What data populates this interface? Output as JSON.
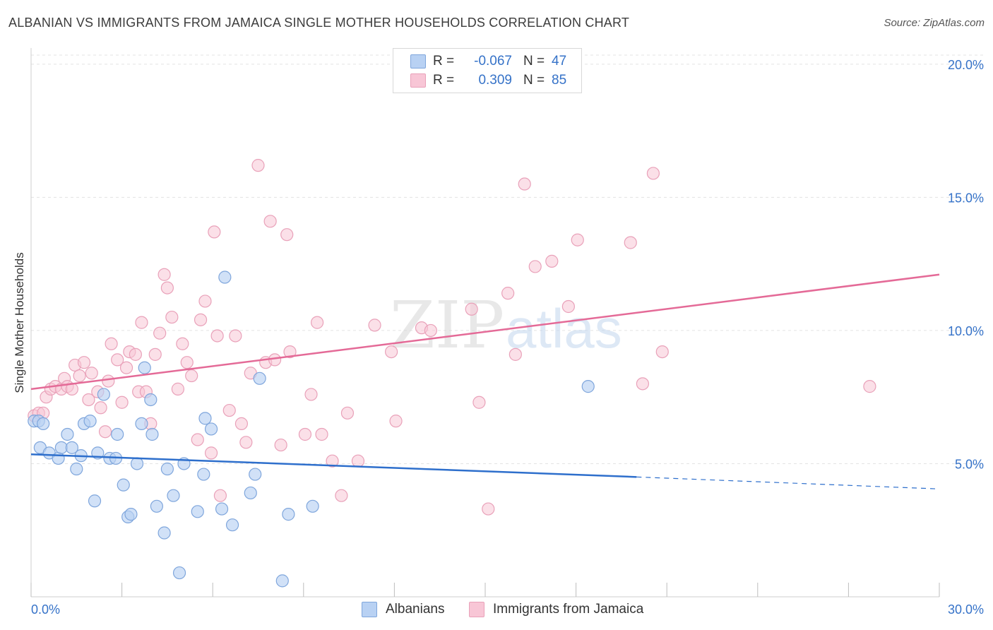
{
  "title": "ALBANIAN VS IMMIGRANTS FROM JAMAICA SINGLE MOTHER HOUSEHOLDS CORRELATION CHART",
  "source": "Source: ZipAtlas.com",
  "watermark": {
    "zip": "ZIP",
    "atlas": "atlas"
  },
  "legend": {
    "r_label": "R =",
    "n_label": "N =",
    "series1": {
      "r": "-0.067",
      "n": "47"
    },
    "series2": {
      "r": "0.309",
      "n": "85"
    }
  },
  "colors": {
    "albanians_fill": "#b8d1f3",
    "albanians_stroke": "#7fa6dc",
    "albanians_line": "#2e6fcc",
    "jamaica_fill": "#f8c6d6",
    "jamaica_stroke": "#e9a1b9",
    "jamaica_line": "#e46a97",
    "tick_label": "#3572c8",
    "grid": "#e3e3e3"
  },
  "chart_data": {
    "type": "scatter",
    "title": "ALBANIAN VS IMMIGRANTS FROM JAMAICA SINGLE MOTHER HOUSEHOLDS CORRELATION CHART",
    "xlabel": "",
    "ylabel": "Single Mother Households",
    "xlim": [
      0,
      30
    ],
    "ylim": [
      0,
      20.5
    ],
    "x_tick_labels": [
      "0.0%",
      "30.0%"
    ],
    "y_ticks": [
      5,
      10,
      15,
      20
    ],
    "y_tick_labels": [
      "5.0%",
      "10.0%",
      "15.0%",
      "20.0%"
    ],
    "grid": "horizontal dashed",
    "legend_position": "top-center",
    "series": [
      {
        "name": "Albanians",
        "r": -0.067,
        "n": 47,
        "trend": {
          "x": [
            0,
            20,
            30
          ],
          "y": [
            5.35,
            4.5,
            4.05
          ],
          "solid_until": 20
        },
        "points": [
          [
            0.1,
            6.6
          ],
          [
            0.25,
            6.6
          ],
          [
            0.4,
            6.5
          ],
          [
            0.3,
            5.6
          ],
          [
            0.6,
            5.4
          ],
          [
            0.9,
            5.2
          ],
          [
            1.0,
            5.6
          ],
          [
            1.2,
            6.1
          ],
          [
            1.35,
            5.6
          ],
          [
            1.5,
            4.8
          ],
          [
            1.65,
            5.3
          ],
          [
            1.75,
            6.5
          ],
          [
            1.95,
            6.6
          ],
          [
            2.1,
            3.6
          ],
          [
            2.2,
            5.4
          ],
          [
            2.4,
            7.6
          ],
          [
            2.6,
            5.2
          ],
          [
            2.8,
            5.2
          ],
          [
            2.85,
            6.1
          ],
          [
            3.05,
            4.2
          ],
          [
            3.2,
            3.0
          ],
          [
            3.3,
            3.1
          ],
          [
            3.5,
            5.0
          ],
          [
            3.65,
            6.5
          ],
          [
            3.75,
            8.6
          ],
          [
            3.95,
            7.4
          ],
          [
            4.0,
            6.1
          ],
          [
            4.15,
            3.4
          ],
          [
            4.4,
            2.4
          ],
          [
            4.5,
            4.8
          ],
          [
            4.7,
            3.8
          ],
          [
            4.9,
            0.9
          ],
          [
            5.05,
            5.0
          ],
          [
            5.5,
            3.2
          ],
          [
            5.7,
            4.6
          ],
          [
            5.75,
            6.7
          ],
          [
            5.95,
            6.3
          ],
          [
            6.3,
            3.3
          ],
          [
            6.4,
            12.0
          ],
          [
            6.65,
            2.7
          ],
          [
            7.25,
            3.9
          ],
          [
            7.4,
            4.6
          ],
          [
            7.55,
            8.2
          ],
          [
            8.3,
            0.6
          ],
          [
            8.5,
            3.1
          ],
          [
            9.3,
            3.4
          ],
          [
            18.4,
            7.9
          ]
        ]
      },
      {
        "name": "Immigrants from Jamaica",
        "r": 0.309,
        "n": 85,
        "trend": {
          "x": [
            0,
            30
          ],
          "y": [
            7.8,
            12.1
          ]
        },
        "points": [
          [
            0.1,
            6.8
          ],
          [
            0.25,
            6.9
          ],
          [
            0.4,
            6.9
          ],
          [
            0.5,
            7.5
          ],
          [
            0.65,
            7.8
          ],
          [
            0.8,
            7.9
          ],
          [
            1.0,
            7.8
          ],
          [
            1.1,
            8.2
          ],
          [
            1.2,
            7.9
          ],
          [
            1.35,
            7.8
          ],
          [
            1.45,
            8.7
          ],
          [
            1.6,
            8.3
          ],
          [
            1.75,
            8.8
          ],
          [
            1.9,
            7.4
          ],
          [
            2.0,
            8.4
          ],
          [
            2.2,
            7.7
          ],
          [
            2.3,
            7.1
          ],
          [
            2.45,
            6.2
          ],
          [
            2.55,
            8.1
          ],
          [
            2.65,
            9.5
          ],
          [
            2.85,
            8.9
          ],
          [
            3.0,
            7.3
          ],
          [
            3.15,
            8.6
          ],
          [
            3.25,
            9.2
          ],
          [
            3.45,
            9.1
          ],
          [
            3.55,
            7.7
          ],
          [
            3.65,
            10.3
          ],
          [
            3.8,
            7.7
          ],
          [
            3.95,
            6.5
          ],
          [
            4.1,
            9.1
          ],
          [
            4.25,
            9.9
          ],
          [
            4.4,
            12.1
          ],
          [
            4.5,
            11.6
          ],
          [
            4.65,
            10.5
          ],
          [
            4.85,
            7.8
          ],
          [
            5.0,
            9.5
          ],
          [
            5.15,
            8.8
          ],
          [
            5.3,
            8.3
          ],
          [
            5.5,
            5.9
          ],
          [
            5.6,
            10.4
          ],
          [
            5.75,
            11.1
          ],
          [
            5.95,
            5.4
          ],
          [
            6.05,
            13.7
          ],
          [
            6.15,
            9.8
          ],
          [
            6.25,
            3.8
          ],
          [
            6.55,
            7.0
          ],
          [
            6.75,
            9.8
          ],
          [
            6.95,
            6.5
          ],
          [
            7.1,
            5.8
          ],
          [
            7.25,
            8.4
          ],
          [
            7.5,
            16.2
          ],
          [
            7.75,
            8.8
          ],
          [
            7.9,
            14.1
          ],
          [
            8.05,
            8.9
          ],
          [
            8.25,
            5.7
          ],
          [
            8.45,
            13.6
          ],
          [
            8.55,
            9.2
          ],
          [
            9.05,
            6.1
          ],
          [
            9.25,
            7.6
          ],
          [
            9.45,
            10.3
          ],
          [
            9.6,
            6.1
          ],
          [
            9.95,
            5.1
          ],
          [
            10.25,
            3.8
          ],
          [
            10.45,
            6.9
          ],
          [
            10.8,
            5.1
          ],
          [
            11.35,
            10.2
          ],
          [
            11.9,
            9.2
          ],
          [
            12.05,
            6.6
          ],
          [
            12.9,
            10.1
          ],
          [
            13.2,
            10.0
          ],
          [
            14.55,
            10.8
          ],
          [
            14.8,
            7.3
          ],
          [
            15.1,
            3.3
          ],
          [
            15.75,
            11.4
          ],
          [
            16.0,
            9.1
          ],
          [
            16.3,
            15.5
          ],
          [
            16.65,
            12.4
          ],
          [
            17.2,
            12.6
          ],
          [
            17.75,
            10.9
          ],
          [
            18.05,
            13.4
          ],
          [
            19.8,
            13.3
          ],
          [
            20.2,
            8.0
          ],
          [
            20.55,
            15.9
          ],
          [
            20.85,
            9.2
          ],
          [
            27.7,
            7.9
          ]
        ]
      }
    ]
  },
  "bottom_legend": [
    "Albanians",
    "Immigrants from Jamaica"
  ]
}
